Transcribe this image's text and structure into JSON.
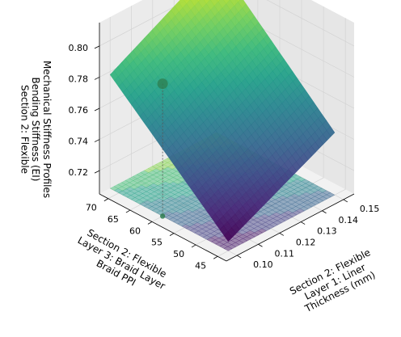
{
  "chart_data": {
    "type": "surface3d",
    "x_axis": {
      "label_lines": [
        "Section 2: Flexible",
        "Layer 1: Liner",
        "Thickness (mm)"
      ],
      "ticks": [
        0.1,
        0.11,
        0.12,
        0.13,
        0.14,
        0.15
      ],
      "tick_labels": [
        "0.10",
        "0.11",
        "0.12",
        "0.13",
        "0.14",
        "0.15"
      ],
      "range": [
        0.095,
        0.155
      ]
    },
    "y_axis": {
      "label_lines": [
        "Section 2: Flexible",
        "Layer 3: Braid Layer",
        "Braid PPI"
      ],
      "ticks": [
        45,
        50,
        55,
        60,
        65,
        70
      ],
      "tick_labels": [
        "45",
        "50",
        "55",
        "60",
        "65",
        "70"
      ],
      "range": [
        43,
        72
      ]
    },
    "z_axis": {
      "label_lines": [
        "Mechanical Stiffness Profiles",
        "Bending Stiffness (EI)",
        "Section 2: Flexible"
      ],
      "ticks": [
        0.72,
        0.74,
        0.76,
        0.78,
        0.8
      ],
      "tick_labels": [
        "0.72",
        "0.74",
        "0.76",
        "0.78",
        "0.80"
      ],
      "range": [
        0.705,
        0.815
      ]
    },
    "surface": {
      "colormap": "viridis",
      "x": [
        0.1,
        0.15
      ],
      "y": [
        45,
        72
      ],
      "z_corners": {
        "x_min_y_min": 0.711,
        "x_max_y_min": 0.745,
        "x_min_y_max": 0.778,
        "x_max_y_max": 0.815
      },
      "z_min": 0.711,
      "z_max": 0.815
    },
    "contour_floor": {
      "colormap": "viridis",
      "opacity": 0.5
    },
    "optimum_point": {
      "x": 0.1,
      "y": 60,
      "z": 0.79,
      "color": "#2e7d4f"
    },
    "grid": true
  }
}
